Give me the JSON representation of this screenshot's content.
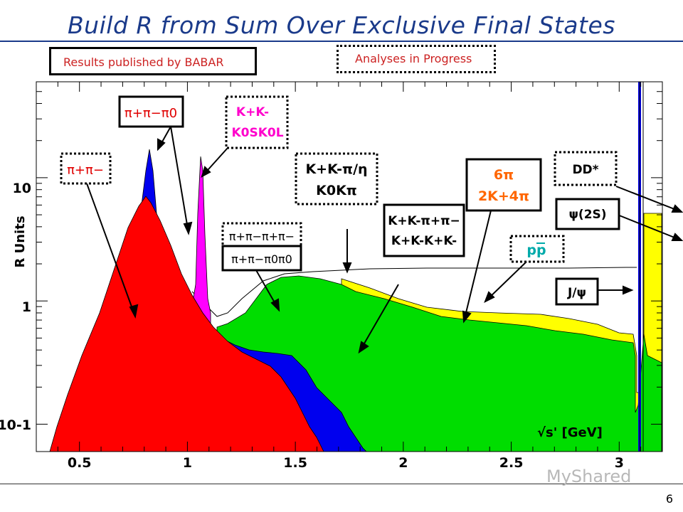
{
  "slide": {
    "title": "Build R from Sum Over Exclusive Final States",
    "legend_published": "Results published by BABAR",
    "legend_in_progress": "Analyses in Progress",
    "page_number": "6",
    "watermark": "MyShared"
  },
  "chart_data": {
    "type": "area",
    "ylabel": "R Units",
    "xlabel": "√s' [GeV]",
    "x_ticks": [
      "0.5",
      "1",
      "1.5",
      "2",
      "2.5",
      "3"
    ],
    "y_ticks": [
      "10",
      "1",
      "10-1"
    ],
    "xlim": [
      0.3,
      3.2
    ],
    "ylim": [
      0.06,
      60
    ],
    "y_scale": "log",
    "series": [
      {
        "name": "π+π−",
        "color": "#ff0000"
      },
      {
        "name": "π+π−π0",
        "color": "#0000ee"
      },
      {
        "name": "K+K- K0SK0L",
        "color": "#ff00ff"
      },
      {
        "name": "K+K-π/η K0Kπ",
        "color": "#00dd00"
      },
      {
        "name": "K+K-π+π− K+K-K+K-",
        "color": "#00dd00"
      },
      {
        "name": "6π 2K+4π",
        "color": "#ffff00"
      },
      {
        "name": "pp",
        "color": "#00aaaa"
      }
    ],
    "annotations": {
      "pipi": "π+π−",
      "pipipi0": "π+π−π0",
      "kk_line1": "K+K-",
      "kk_line2": "K0SK0L",
      "kkpi_line1": "K+K-π/η",
      "kkpi_line2": "K0Kπ",
      "fourpi_line1": "π+π−π+π−",
      "fourpi_line2": "π+π−π0π0",
      "kkpipi_line1": "K+K-π+π−",
      "kkpipi_line2": "K+K-K+K-",
      "sixpi_line1": "6π",
      "sixpi_line2": "2K+4π",
      "ppbar": "pp",
      "dd": "DD*",
      "psi2s": "ψ(2S)",
      "jpsi": "J/ψ"
    }
  }
}
